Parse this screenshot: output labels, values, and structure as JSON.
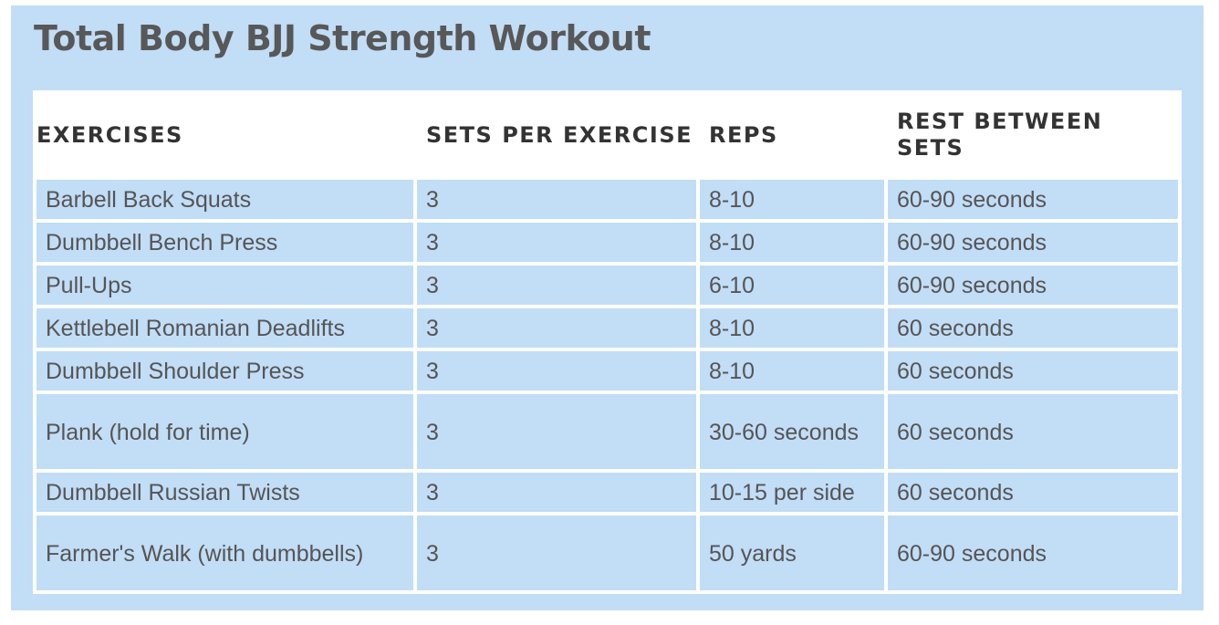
{
  "page": {
    "title": "Total Body BJJ Strength Workout"
  },
  "table": {
    "headers": [
      "EXERCISES",
      "SETS PER EXERCISE",
      "REPS",
      "REST BETWEEN SETS"
    ],
    "rows": [
      [
        "Barbell Back Squats",
        "3",
        "8-10",
        "60-90 seconds"
      ],
      [
        "Dumbbell Bench Press",
        "3",
        "8-10",
        "60-90 seconds"
      ],
      [
        "Pull-Ups",
        "3",
        "6-10",
        "60-90 seconds"
      ],
      [
        "Kettlebell Romanian Deadlifts",
        "3",
        "8-10",
        "60 seconds"
      ],
      [
        "Dumbbell Shoulder Press",
        "3",
        "8-10",
        "60 seconds"
      ],
      [
        "Plank (hold for time)",
        "3",
        "30-60 seconds",
        "60 seconds"
      ],
      [
        "Dumbbell Russian Twists",
        "3",
        "10-15 per side",
        "60 seconds"
      ],
      [
        "Farmer's Walk (with dumbbells)",
        "3",
        "50 yards",
        "60-90 seconds"
      ]
    ]
  },
  "colors": {
    "panel_background": "#c2ddf6",
    "table_lines": "#ffffff",
    "title_text": "#585858",
    "header_text": "#333333",
    "cell_text": "#555555"
  }
}
